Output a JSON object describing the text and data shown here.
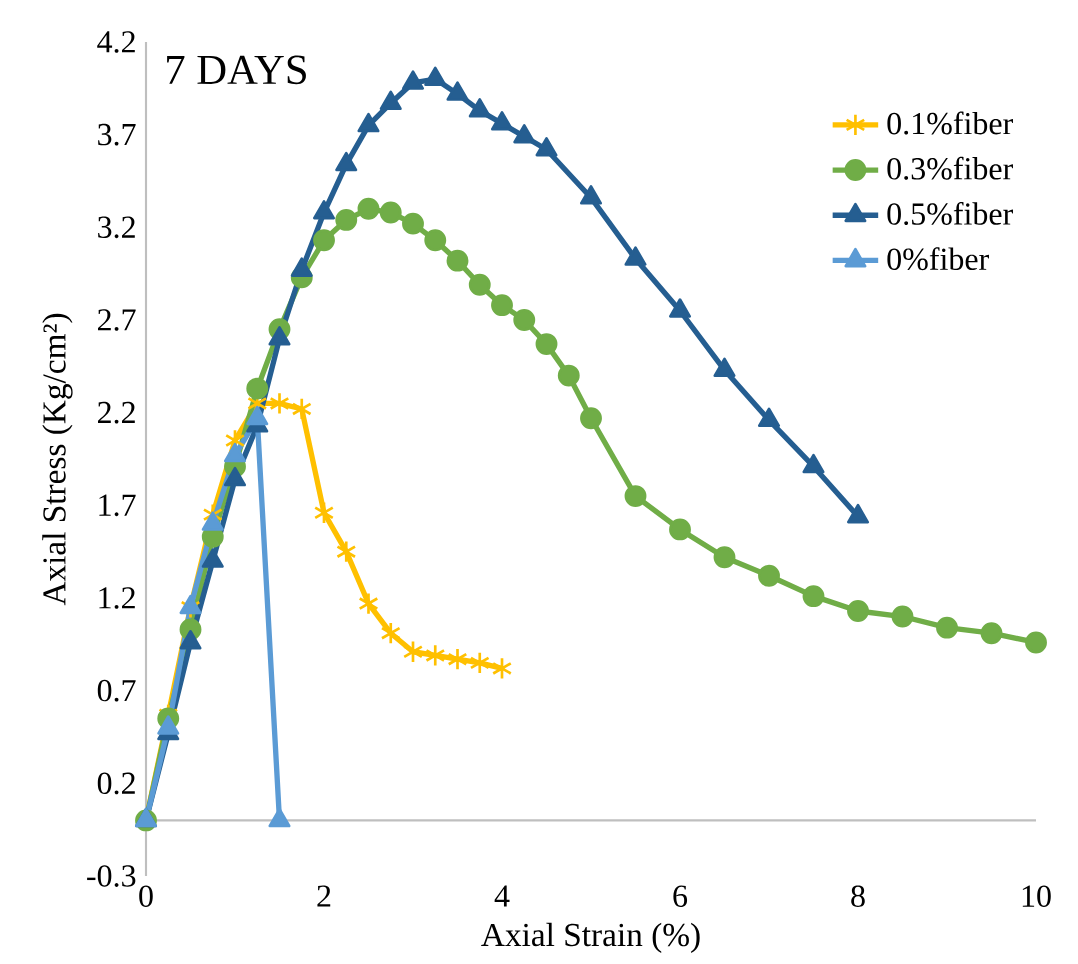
{
  "chart_data": {
    "type": "line",
    "xlabel": "Axial Strain (%)",
    "ylabel": "Axial Stress (Kg/cm²)",
    "annotations": [
      "7 DAYS"
    ],
    "xlim": [
      0,
      10
    ],
    "xticks": [
      0,
      2,
      4,
      6,
      8,
      10
    ],
    "ylim": [
      -0.3,
      4.2
    ],
    "yticks": [
      -0.3,
      0.2,
      0.7,
      1.2,
      1.7,
      2.2,
      2.7,
      3.2,
      3.7,
      4.2
    ],
    "grid": false,
    "legend": "top right",
    "line_style": "solid",
    "series": [
      {
        "name": "0.1%fiber",
        "color": "#ffc000",
        "marker": "cross",
        "x": [
          0,
          0.25,
          0.5,
          0.75,
          1,
          1.25,
          1.5,
          1.75,
          2,
          2.25,
          2.5,
          2.75,
          3,
          3.25,
          3.5,
          3.75,
          4
        ],
        "values": [
          0,
          0.57,
          1.15,
          1.65,
          2.05,
          2.25,
          2.25,
          2.22,
          1.66,
          1.45,
          1.17,
          1.01,
          0.91,
          0.89,
          0.87,
          0.85,
          0.82
        ]
      },
      {
        "name": "0.3%fiber",
        "color": "#70ad47",
        "marker": "circle",
        "x": [
          0,
          0.25,
          0.5,
          0.75,
          1,
          1.25,
          1.5,
          1.75,
          2,
          2.25,
          2.5,
          2.75,
          3,
          3.25,
          3.5,
          3.75,
          4,
          4.25,
          4.5,
          4.75,
          5,
          5.5,
          6,
          6.5,
          7,
          7.5,
          8,
          8.5,
          9,
          9.5,
          10
        ],
        "values": [
          0,
          0.55,
          1.03,
          1.53,
          1.91,
          2.33,
          2.65,
          2.93,
          3.13,
          3.24,
          3.3,
          3.28,
          3.22,
          3.13,
          3.02,
          2.89,
          2.78,
          2.7,
          2.57,
          2.4,
          2.17,
          1.75,
          1.57,
          1.42,
          1.32,
          1.21,
          1.13,
          1.1,
          1.04,
          1.01,
          0.96
        ]
      },
      {
        "name": "0.5%fiber",
        "color": "#255e91",
        "marker": "triangle",
        "x": [
          0,
          0.25,
          0.5,
          0.75,
          1,
          1.25,
          1.5,
          1.75,
          2,
          2.25,
          2.5,
          2.75,
          3,
          3.25,
          3.5,
          3.75,
          4,
          4.25,
          4.5,
          5,
          5.5,
          6,
          6.5,
          7,
          7.5,
          8
        ],
        "values": [
          0,
          0.47,
          0.96,
          1.4,
          1.84,
          2.13,
          2.6,
          2.97,
          3.28,
          3.54,
          3.75,
          3.87,
          3.98,
          4.0,
          3.92,
          3.83,
          3.76,
          3.69,
          3.62,
          3.36,
          3.03,
          2.75,
          2.43,
          2.16,
          1.91,
          1.64
        ]
      },
      {
        "name": "0%fiber",
        "color": "#5b9bd5",
        "marker": "triangle",
        "x": [
          0,
          0.25,
          0.5,
          0.75,
          1,
          1.25,
          1.5
        ],
        "values": [
          0,
          0.5,
          1.15,
          1.6,
          1.97,
          2.17,
          0
        ]
      }
    ]
  }
}
